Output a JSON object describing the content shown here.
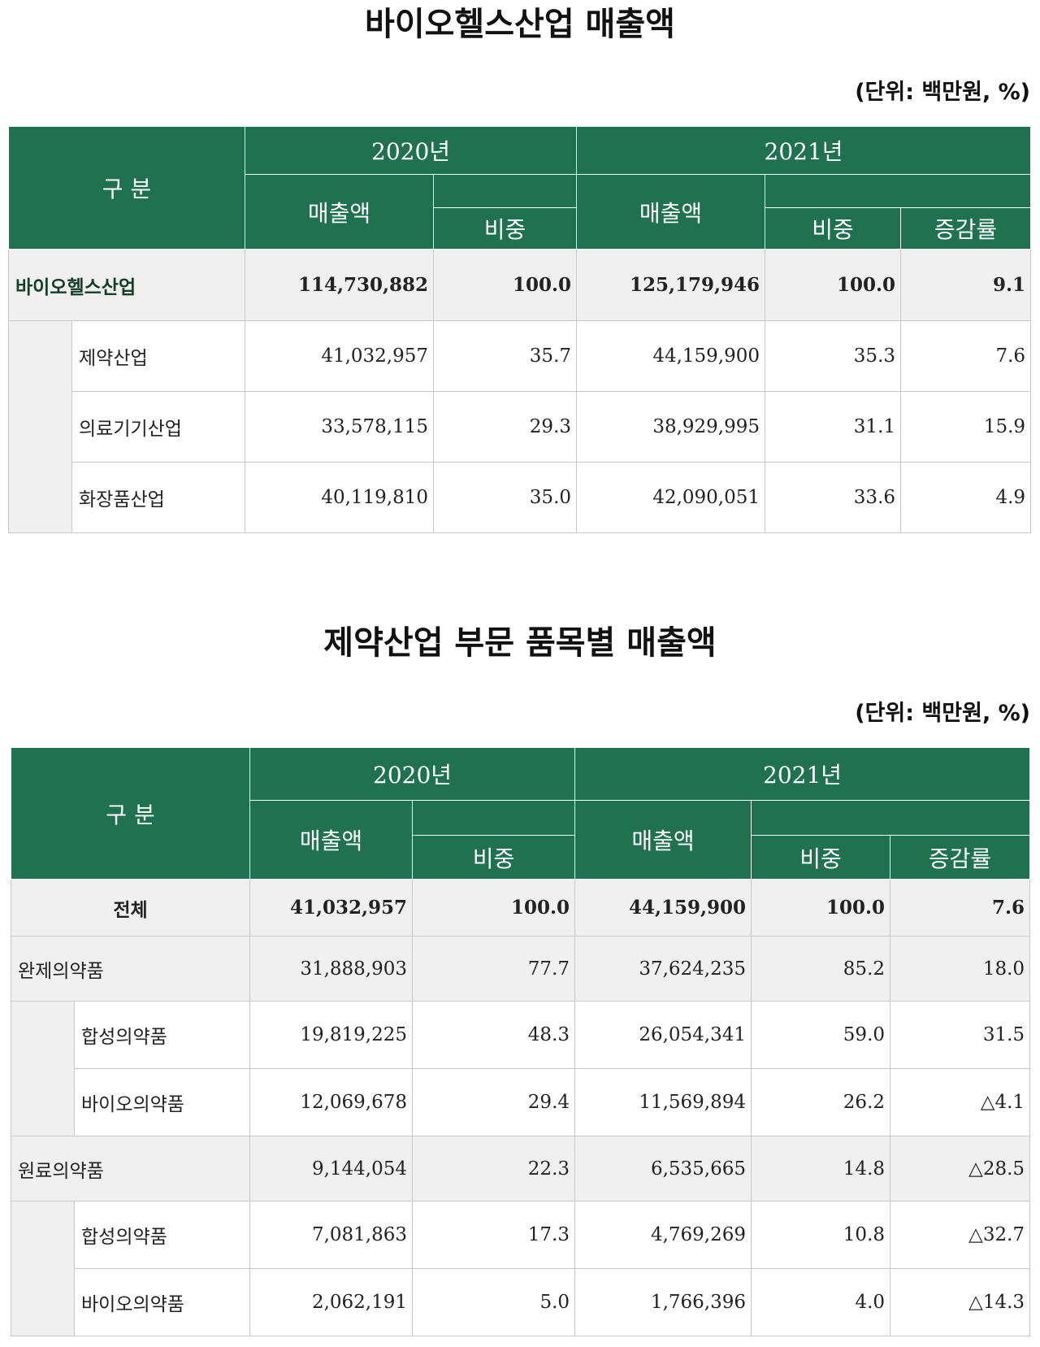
{
  "tables": [
    {
      "title": "바이오헬스산업 매출액",
      "unit": "(단위: 백만원, %)",
      "header": [
        "구 분",
        "2020년",
        "2021년",
        "매출액",
        "비중",
        "매출액",
        "비중",
        "증감률"
      ],
      "rows": [
        {
          "name": "바이오헬스산업",
          "values": [
            "114,730,882",
            "100.0",
            "125,179,946",
            "100.0",
            "9.1"
          ],
          "children": [
            {
              "name": "제약산업",
              "values": [
                "41,032,957",
                "35.7",
                "44,159,900",
                "35.3",
                "7.6"
              ]
            },
            {
              "name": "의료기기산업",
              "values": [
                "33,578,115",
                "29.3",
                "38,929,995",
                "31.1",
                "15.9"
              ]
            },
            {
              "name": "화장품산업",
              "values": [
                "40,119,810",
                "35.0",
                "42,090,051",
                "33.6",
                "4.9"
              ]
            }
          ]
        }
      ]
    },
    {
      "title": "제약산업 부문 품목별 매출액",
      "unit": "(단위: 백만원, %)",
      "header": [
        "구 분",
        "2020년",
        "2021년",
        "매출액",
        "비중",
        "매출액",
        "비중",
        "증감률"
      ],
      "rows": [
        {
          "name": "전체",
          "values": [
            "41,032,957",
            "100.0",
            "44,159,900",
            "100.0",
            "7.6"
          ]
        },
        {
          "name": "완제의약품",
          "values": [
            "31,888,903",
            "77.7",
            "37,624,235",
            "85.2",
            "18.0"
          ],
          "children": [
            {
              "name": "합성의약품",
              "values": [
                "19,819,225",
                "48.3",
                "26,054,341",
                "59.0",
                "31.5"
              ]
            },
            {
              "name": "바이오의약품",
              "values": [
                "12,069,678",
                "29.4",
                "11,569,894",
                "26.2",
                "△4.1"
              ]
            }
          ]
        },
        {
          "name": "원료의약품",
          "values": [
            "9,144,054",
            "22.3",
            "6,535,665",
            "14.8",
            "△28.5"
          ],
          "children": [
            {
              "name": "합성의약품",
              "values": [
                "7,081,863",
                "17.3",
                "4,769,269",
                "10.8",
                "△32.7"
              ]
            },
            {
              "name": "바이오의약품",
              "values": [
                "2,062,191",
                "5.0",
                "1,766,396",
                "4.0",
                "△14.3"
              ]
            }
          ]
        }
      ]
    }
  ]
}
